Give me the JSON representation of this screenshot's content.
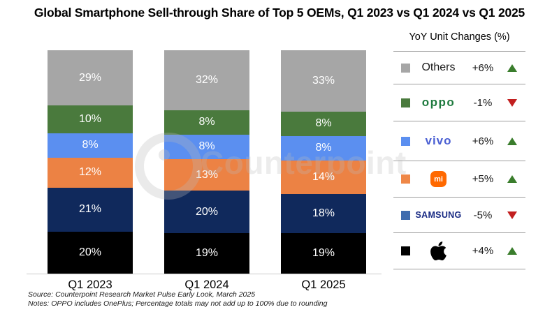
{
  "title": "Global Smartphone Sell-through Share of Top 5 OEMs, Q1 2023 vs Q1 2024 vs Q1 2025",
  "watermark_text": "Counterpoint",
  "chart_data": {
    "type": "bar",
    "stacked": true,
    "categories": [
      "Q1 2023",
      "Q1 2024",
      "Q1 2025"
    ],
    "series_top_to_bottom": [
      {
        "name": "Others",
        "values": [
          29,
          32,
          33
        ],
        "labels": [
          "29%",
          "32%",
          "33%"
        ],
        "color": "#a6a6a6"
      },
      {
        "name": "OPPO",
        "values": [
          10,
          8,
          8
        ],
        "labels": [
          "10%",
          "8%",
          "8%"
        ],
        "color": "#4a7a3d"
      },
      {
        "name": "vivo",
        "values": [
          8,
          8,
          8
        ],
        "labels": [
          "8%",
          "8%",
          "8%"
        ],
        "color": "#5b8ff0"
      },
      {
        "name": "Xiaomi",
        "values": [
          12,
          13,
          14
        ],
        "labels": [
          "12%",
          "13%",
          "14%"
        ],
        "color": "#ec8244"
      },
      {
        "name": "Samsung",
        "values": [
          21,
          20,
          18
        ],
        "labels": [
          "21%",
          "20%",
          "18%"
        ],
        "color": "#10295c"
      },
      {
        "name": "Apple",
        "values": [
          20,
          19,
          19
        ],
        "labels": [
          "20%",
          "19%",
          "19%"
        ],
        "color": "#000000"
      }
    ],
    "value_suffix": "%",
    "ylim": [
      0,
      100
    ],
    "legend_position": "right"
  },
  "legend": {
    "header": "YoY Unit Changes (%)",
    "rows": [
      {
        "brand": "Others",
        "logo_text": "Others",
        "swatch": "#a6a6a6",
        "change": "+6%",
        "direction": "up"
      },
      {
        "brand": "OPPO",
        "logo_text": "oppo",
        "swatch": "#4a7a3d",
        "change": "-1%",
        "direction": "down"
      },
      {
        "brand": "vivo",
        "logo_text": "vivo",
        "swatch": "#5b8ff0",
        "change": "+6%",
        "direction": "up"
      },
      {
        "brand": "Xiaomi",
        "logo_text": "mi",
        "swatch": "#ef8747",
        "change": "+5%",
        "direction": "up"
      },
      {
        "brand": "Samsung",
        "logo_text": "SAMSUNG",
        "swatch": "#3f6cae",
        "change": "-5%",
        "direction": "down"
      },
      {
        "brand": "Apple",
        "logo_text": "apple-logo",
        "swatch": "#000000",
        "change": "+4%",
        "direction": "up"
      }
    ],
    "arrow_colors": {
      "up": "#3a7d2c",
      "down": "#c21f1f"
    }
  },
  "x_axis": {
    "labels": [
      "Q1 2023",
      "Q1 2024",
      "Q1 2025"
    ]
  },
  "footer": {
    "source": "Source: Counterpoint Research Market Pulse Early Look, March 2025",
    "notes": "Notes: OPPO includes OnePlus; Percentage totals may not add up to 100% due to rounding"
  }
}
